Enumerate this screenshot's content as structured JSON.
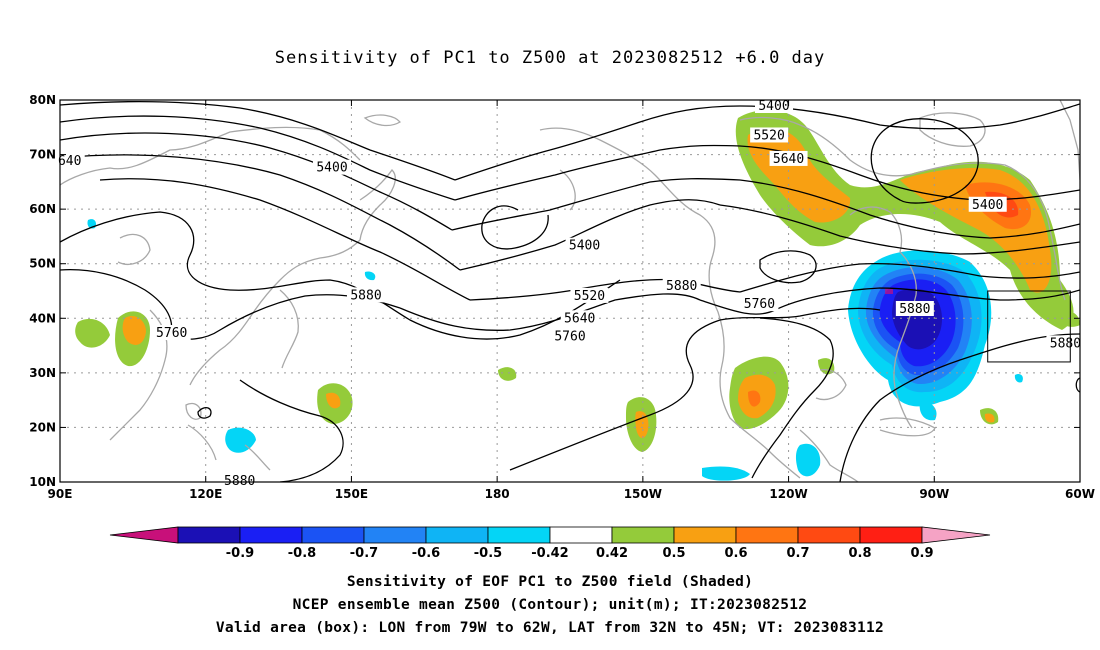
{
  "title": "Sensitivity of PC1 to Z500 at 2023082512 +6.0 day",
  "map": {
    "lon_range": [
      90,
      300
    ],
    "lat_range": [
      10,
      80
    ],
    "lon_ticks": [
      {
        "lon": 90,
        "label": "90E"
      },
      {
        "lon": 120,
        "label": "120E"
      },
      {
        "lon": 150,
        "label": "150E"
      },
      {
        "lon": 180,
        "label": "180"
      },
      {
        "lon": 210,
        "label": "150W"
      },
      {
        "lon": 240,
        "label": "120W"
      },
      {
        "lon": 270,
        "label": "90W"
      },
      {
        "lon": 300,
        "label": "60W"
      }
    ],
    "lat_ticks": [
      {
        "lat": 80,
        "label": "80N"
      },
      {
        "lat": 70,
        "label": "70N"
      },
      {
        "lat": 60,
        "label": "60N"
      },
      {
        "lat": 50,
        "label": "50N"
      },
      {
        "lat": 40,
        "label": "40N"
      },
      {
        "lat": 30,
        "label": "30N"
      },
      {
        "lat": 20,
        "label": "20N"
      },
      {
        "lat": 10,
        "label": "10N"
      }
    ],
    "contour_labels": [
      "5400",
      "5520",
      "5640",
      "5760",
      "5880"
    ],
    "contour_label_list": [
      {
        "text": "5400",
        "lon": 237,
        "lat": 78.9
      },
      {
        "text": "5520",
        "lon": 236,
        "lat": 73.5
      },
      {
        "text": "5640",
        "lon": 240,
        "lat": 69.2
      },
      {
        "text": "5400",
        "lon": 146,
        "lat": 67.6
      },
      {
        "text": "640",
        "lon": 92,
        "lat": 68.8
      },
      {
        "text": "5400",
        "lon": 281,
        "lat": 60.8
      },
      {
        "text": "5400",
        "lon": 198,
        "lat": 53.3
      },
      {
        "text": "5520",
        "lon": 199,
        "lat": 44.1
      },
      {
        "text": "5640",
        "lon": 197,
        "lat": 40.0
      },
      {
        "text": "5760",
        "lon": 195,
        "lat": 36.7
      },
      {
        "text": "5880",
        "lon": 153,
        "lat": 44.2
      },
      {
        "text": "5760",
        "lon": 113,
        "lat": 37.3
      },
      {
        "text": "5880",
        "lon": 218,
        "lat": 45.9
      },
      {
        "text": "5760",
        "lon": 234,
        "lat": 42.6
      },
      {
        "text": "5880",
        "lon": 266,
        "lat": 41.7
      },
      {
        "text": "5880",
        "lon": 297,
        "lat": 35.4
      },
      {
        "text": "5880",
        "lon": 127,
        "lat": 10.2
      }
    ],
    "valid_box": {
      "lon_min": 281,
      "lon_max": 298,
      "lat_min": 32,
      "lat_max": 45
    }
  },
  "colorbar": {
    "colors": [
      "#c8107a",
      "#1b10b5",
      "#1a1ff4",
      "#1b53f4",
      "#2283f5",
      "#0fb4f5",
      "#04d5f6",
      "#ffffff",
      "#94cb3a",
      "#f8a012",
      "#ff7512",
      "#ff4a12",
      "#ff1f14",
      "#f5a3c5"
    ],
    "labels": [
      "-0.9",
      "-0.8",
      "-0.7",
      "-0.6",
      "-0.5",
      "-0.42",
      "0.42",
      "0.5",
      "0.6",
      "0.7",
      "0.8",
      "0.9"
    ]
  },
  "footer": {
    "line1": "Sensitivity of EOF PC1 to Z500 field (Shaded)",
    "line2": "NCEP ensemble mean Z500 (Contour); unit(m); IT:2023082512",
    "line3": "Valid area (box): LON from 79W to 62W, LAT from 32N to 45N; VT: 2023083112"
  }
}
